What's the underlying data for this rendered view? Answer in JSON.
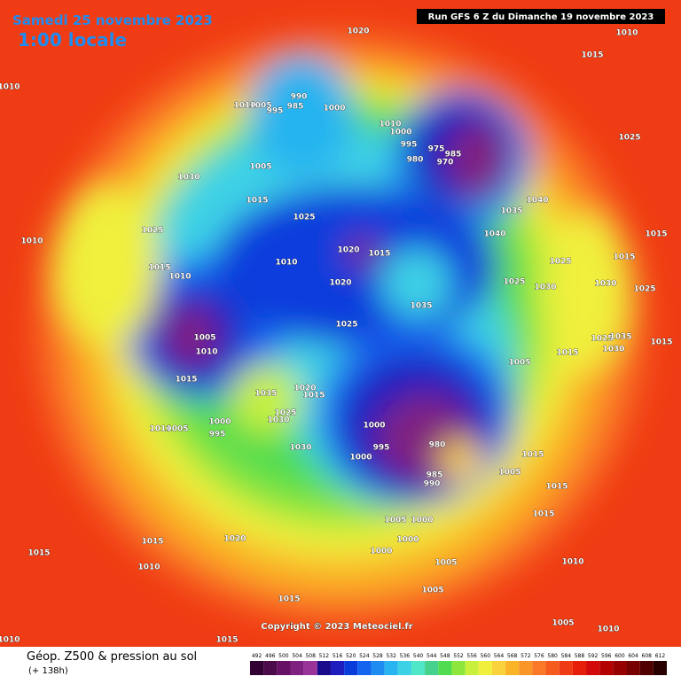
{
  "header": {
    "date": "Samedi 25 novembre 2023",
    "time": "1:00 locale",
    "run": "Run GFS 6 Z du Dimanche 19 novembre 2023"
  },
  "copyright": "Copyright © 2023 Meteociel.fr",
  "footer": {
    "title": "Géop. Z500 & pression au sol",
    "lead": "(+ 138h)"
  },
  "legend": {
    "values": [
      492,
      496,
      500,
      504,
      508,
      512,
      516,
      520,
      524,
      528,
      532,
      536,
      540,
      544,
      548,
      552,
      556,
      560,
      564,
      568,
      572,
      576,
      580,
      584,
      588,
      592,
      596,
      600,
      604,
      608,
      612
    ],
    "colors": [
      "#330033",
      "#4b0b4b",
      "#661166",
      "#802080",
      "#993399",
      "#1a0a8c",
      "#1e1ebe",
      "#0a3cdc",
      "#1464f0",
      "#1e8cf0",
      "#28b4f0",
      "#3cd2e6",
      "#50e6c8",
      "#46d28c",
      "#50dc50",
      "#8ce63c",
      "#c8f03c",
      "#f0f03c",
      "#fad23c",
      "#fab428",
      "#fa9628",
      "#fa7828",
      "#f55a1e",
      "#f03c14",
      "#e61e0a",
      "#d20a0a",
      "#b40000",
      "#960000",
      "#780000",
      "#500000",
      "#280000"
    ]
  },
  "pressure_labels": [
    "1020",
    "1010",
    "1015",
    "1010",
    "990",
    "985",
    "1010",
    "1005",
    "995",
    "1000",
    "1010",
    "1000",
    "995",
    "980",
    "975",
    "985",
    "970",
    "1025",
    "1005",
    "1030",
    "1015",
    "1040",
    "1035",
    "1025",
    "1040",
    "1025",
    "1010",
    "1020",
    "1015",
    "1015",
    "1025",
    "1015",
    "1015",
    "1010",
    "1010",
    "1020",
    "1025",
    "1030",
    "1030",
    "1025",
    "1035",
    "1025",
    "1005",
    "1010",
    "1025",
    "1035",
    "1015",
    "1030",
    "1015",
    "1005",
    "1015",
    "1035",
    "1020",
    "1015",
    "1025",
    "1030",
    "1000",
    "1010",
    "1005",
    "995",
    "1000",
    "980",
    "995",
    "1030",
    "1000",
    "1015",
    "985",
    "1005",
    "990",
    "1015",
    "1005",
    "1000",
    "1015",
    "1015",
    "1020",
    "1000",
    "1015",
    "1000",
    "1005",
    "1010",
    "1010",
    "1005",
    "1015",
    "1005",
    "1010",
    "1015",
    "1010"
  ]
}
